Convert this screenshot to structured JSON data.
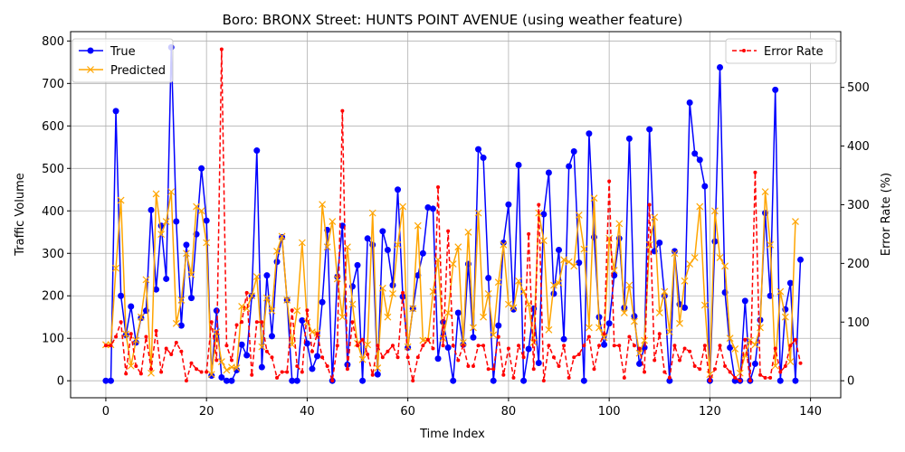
{
  "chart_data": {
    "type": "line",
    "title": "Boro: BRONX Street: HUNTS POINT AVENUE (using weather feature)",
    "xlabel": "Time Index",
    "ylabel": "Traffic Volume",
    "y2label": "Error Rate (%)",
    "xlim": [
      -7,
      146
    ],
    "ylim": [
      -40,
      822
    ],
    "y2lim": [
      -29,
      595
    ],
    "xticks": [
      0,
      20,
      40,
      60,
      80,
      100,
      120,
      140
    ],
    "yticks": [
      0,
      100,
      200,
      300,
      400,
      500,
      600,
      700,
      800
    ],
    "y2ticks": [
      0,
      100,
      200,
      300,
      400,
      500
    ],
    "grid": true,
    "legend_left_position": "upper-left",
    "legend_right_position": "upper-right",
    "series": [
      {
        "name": "True",
        "axis": "left",
        "color": "#0000ff",
        "marker": "circle",
        "values": [
          0,
          0,
          635,
          200,
          108,
          175,
          90,
          148,
          165,
          402,
          215,
          365,
          240,
          785,
          375,
          130,
          320,
          195,
          345,
          500,
          377,
          12,
          165,
          8,
          0,
          0,
          25,
          85,
          60,
          200,
          542,
          32,
          248,
          105,
          280,
          338,
          190,
          0,
          0,
          142,
          88,
          28,
          58,
          185,
          355,
          0,
          245,
          365,
          38,
          222,
          272,
          0,
          335,
          320,
          15,
          352,
          308,
          225,
          450,
          198,
          78,
          170,
          248,
          300,
          408,
          405,
          52,
          138,
          78,
          0,
          160,
          85,
          275,
          102,
          545,
          525,
          242,
          0,
          130,
          325,
          415,
          168,
          508,
          0,
          75,
          170,
          42,
          392,
          490,
          205,
          308,
          98,
          505,
          540,
          278,
          0,
          582,
          338,
          150,
          85,
          135,
          248,
          335,
          172,
          570,
          152,
          40,
          78,
          592,
          305,
          325,
          200,
          0,
          305,
          180,
          172,
          655,
          535,
          520,
          458,
          0,
          328,
          738,
          208,
          78,
          0,
          0,
          188,
          0,
          40,
          143,
          395,
          200,
          685,
          0,
          168,
          230,
          0,
          285
        ]
      },
      {
        "name": "Predicted",
        "axis": "left",
        "color": "#ffa500",
        "marker": "x",
        "values": [
          85,
          85,
          265,
          425,
          110,
          35,
          95,
          150,
          238,
          18,
          440,
          345,
          375,
          445,
          135,
          190,
          300,
          250,
          410,
          400,
          325,
          15,
          115,
          45,
          25,
          32,
          30,
          175,
          170,
          200,
          245,
          80,
          195,
          165,
          305,
          340,
          190,
          85,
          165,
          325,
          138,
          115,
          112,
          415,
          315,
          375,
          240,
          150,
          315,
          180,
          88,
          50,
          85,
          395,
          30,
          218,
          150,
          205,
          320,
          410,
          80,
          170,
          365,
          95,
          95,
          210,
          285,
          100,
          160,
          275,
          315,
          90,
          350,
          125,
          395,
          150,
          205,
          108,
          232,
          320,
          180,
          172,
          235,
          210,
          180,
          90,
          395,
          330,
          120,
          225,
          230,
          285,
          280,
          270,
          390,
          310,
          125,
          430,
          125,
          102,
          335,
          260,
          370,
          160,
          225,
          140,
          65,
          95,
          320,
          385,
          160,
          210,
          115,
          300,
          135,
          235,
          275,
          290,
          410,
          178,
          15,
          400,
          290,
          270,
          100,
          75,
          18,
          60,
          95,
          85,
          125,
          445,
          320,
          35,
          210,
          150,
          45,
          375
        ]
      },
      {
        "name": "Error Rate",
        "axis": "right",
        "color": "#ff0000",
        "marker": "dot",
        "linestyle": "dashed",
        "values": [
          60,
          60,
          75,
          100,
          12,
          80,
          25,
          12,
          75,
          20,
          85,
          15,
          55,
          45,
          65,
          50,
          0,
          30,
          20,
          15,
          15,
          100,
          35,
          565,
          60,
          35,
          95,
          100,
          150,
          10,
          100,
          100,
          50,
          40,
          5,
          15,
          15,
          120,
          25,
          15,
          120,
          50,
          80,
          40,
          25,
          0,
          60,
          460,
          20,
          100,
          60,
          70,
          45,
          10,
          60,
          40,
          50,
          60,
          40,
          150,
          40,
          0,
          40,
          60,
          70,
          55,
          330,
          60,
          255,
          60,
          35,
          60,
          25,
          25,
          60,
          60,
          20,
          20,
          75,
          10,
          55,
          5,
          60,
          40,
          250,
          20,
          300,
          0,
          60,
          40,
          25,
          60,
          5,
          40,
          45,
          60,
          75,
          20,
          60,
          80,
          340,
          60,
          60,
          5,
          75,
          60,
          55,
          15,
          300,
          35,
          80,
          15,
          5,
          60,
          35,
          55,
          50,
          25,
          20,
          60,
          0,
          20,
          60,
          25,
          15,
          5,
          0,
          70,
          0,
          355,
          10,
          5,
          5,
          55,
          15,
          25,
          60,
          70,
          30
        ]
      }
    ]
  }
}
